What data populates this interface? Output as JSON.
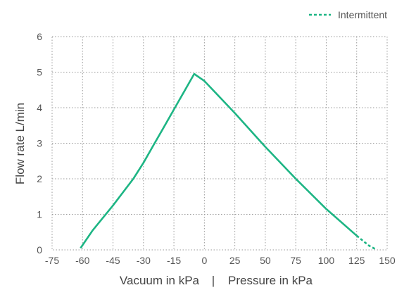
{
  "chart_data": {
    "type": "line",
    "xlabel_left": "Vacuum in kPa",
    "xlabel_separator": "|",
    "xlabel_right": "Pressure in kPa",
    "ylabel": "Flow rate L/min",
    "x_ticks": [
      -75,
      -60,
      -45,
      -30,
      -15,
      0,
      25,
      50,
      75,
      100,
      125,
      150
    ],
    "x_tick_labels": [
      "-75",
      "-60",
      "-45",
      "-30",
      "-15",
      "0",
      "25",
      "50",
      "75",
      "100",
      "125",
      "150"
    ],
    "y_ticks": [
      0,
      1,
      2,
      3,
      4,
      5,
      6
    ],
    "y_tick_labels": [
      "0",
      "1",
      "2",
      "3",
      "4",
      "5",
      "6"
    ],
    "ylim": [
      0,
      6
    ],
    "grid": true,
    "legend": {
      "position": "top-right",
      "entries": [
        {
          "label": "Intermittent",
          "style": "dashed"
        }
      ]
    },
    "color": "#1db584",
    "series": [
      {
        "style": "solid",
        "x": [
          -61,
          -55,
          -45,
          -35,
          -30,
          -25,
          -20,
          -15,
          -10,
          -5,
          0,
          25,
          50,
          75,
          100,
          125
        ],
        "y": [
          0.05,
          0.55,
          1.25,
          2.0,
          2.45,
          2.95,
          3.45,
          3.95,
          4.45,
          4.95,
          4.75,
          3.85,
          2.9,
          2.0,
          1.15,
          0.4
        ]
      },
      {
        "style": "dashed",
        "x": [
          125,
          135,
          140
        ],
        "y": [
          0.4,
          0.12,
          0.03
        ]
      }
    ]
  }
}
